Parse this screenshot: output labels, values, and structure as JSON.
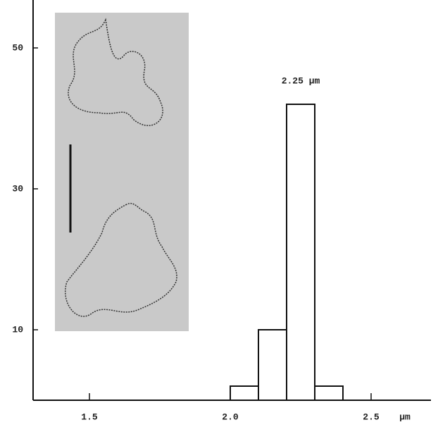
{
  "chart_data": {
    "type": "histogram",
    "bins": [
      2.0,
      2.1,
      2.2,
      2.3,
      2.4
    ],
    "values": [
      2,
      10,
      42,
      2
    ],
    "color": "#ffffff",
    "xlim": [
      1.3,
      2.7
    ],
    "xticks": [
      1.5,
      {
        "value": 2,
        "label": "2.0"
      },
      2.5
    ],
    "ylim": [
      0,
      56
    ],
    "yticks": [
      10,
      30,
      50
    ],
    "x_label": "µm",
    "annotation": "2.25 µm"
  }
}
